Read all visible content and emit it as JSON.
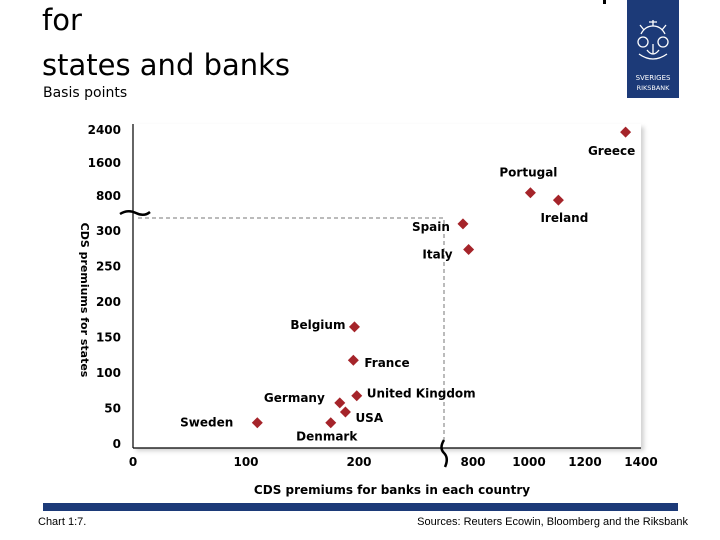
{
  "header": {
    "title_line1": "for",
    "title_line2": "states and banks",
    "subtitle": "Basis points"
  },
  "logo": {
    "text_line1": "SVERIGES",
    "text_line2": "RIKSBANK",
    "color": "#1c3a78"
  },
  "footer": {
    "chart_number": "Chart 1:7.",
    "sources": "Sources: Reuters Ecowin, Bloomberg and the Riksbank",
    "bar_color": "#1c3a78"
  },
  "chart_data": {
    "type": "scatter",
    "title": "",
    "xlabel": "CDS premiums for banks in each country",
    "ylabel": "CDS premiums for states",
    "x_ticks_low": [
      "0",
      "100",
      "200"
    ],
    "x_ticks_high": [
      "800",
      "1000",
      "1200",
      "1400"
    ],
    "y_ticks_low": [
      "0",
      "50",
      "100",
      "150",
      "200",
      "250",
      "300"
    ],
    "y_ticks_high": [
      "800",
      "1600",
      "2400"
    ],
    "axis_break": {
      "x_low_max": 300,
      "x_high_min": 800,
      "y_low_max": 330,
      "y_high_min": 800
    },
    "reference_box": {
      "x": 300,
      "y": 315
    },
    "marker_color": "#a5242a",
    "points": [
      {
        "label": "Sweden",
        "x": 110,
        "y": 30
      },
      {
        "label": "Denmark",
        "x": 175,
        "y": 30
      },
      {
        "label": "Germany",
        "x": 183,
        "y": 58
      },
      {
        "label": "USA",
        "x": 188,
        "y": 45
      },
      {
        "label": "United Kingdom",
        "x": 198,
        "y": 68
      },
      {
        "label": "France",
        "x": 195,
        "y": 118
      },
      {
        "label": "Belgium",
        "x": 196,
        "y": 165
      },
      {
        "label": "Spain",
        "x": 292,
        "y": 310
      },
      {
        "label": "Italy",
        "x": 297,
        "y": 274
      },
      {
        "label": "Portugal",
        "x": 1005,
        "y": 880
      },
      {
        "label": "Ireland",
        "x": 1105,
        "y": 700
      },
      {
        "label": "Greece",
        "x": 1345,
        "y": 2350
      }
    ]
  }
}
